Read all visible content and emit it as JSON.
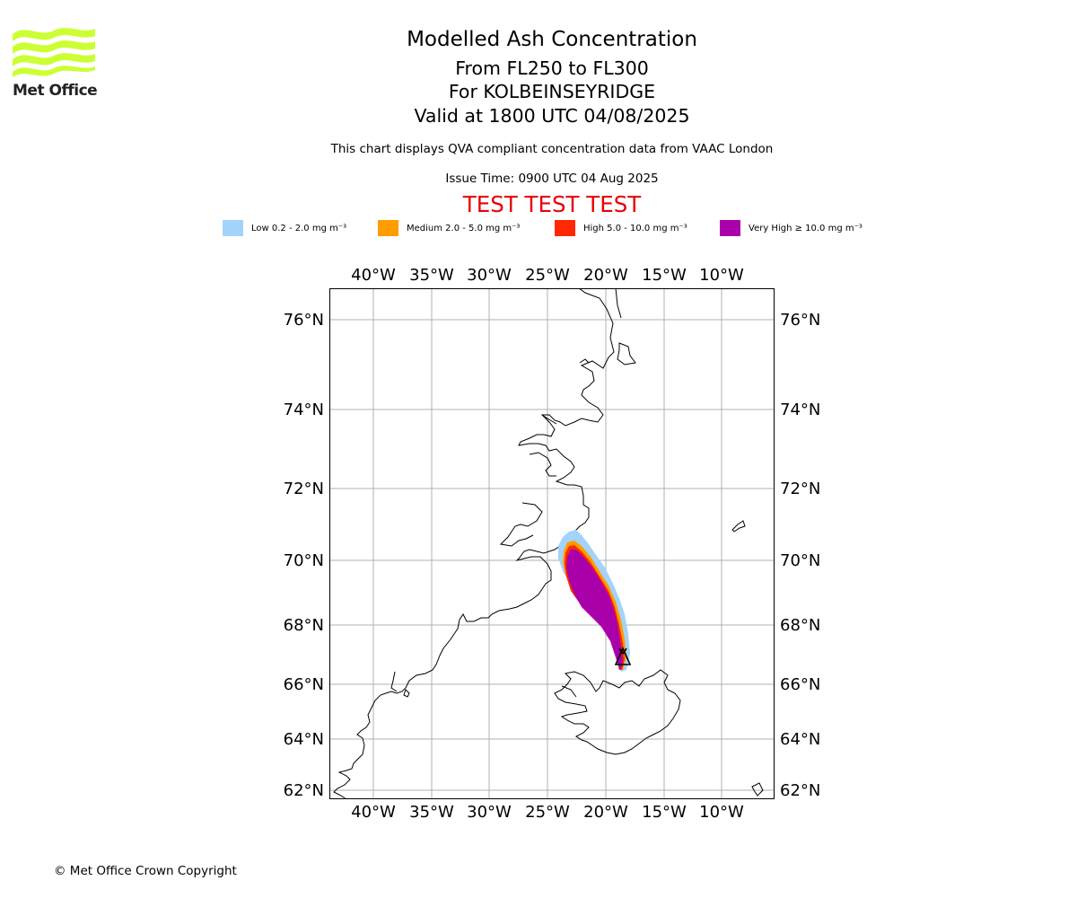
{
  "logo": {
    "text": "Met Office",
    "accent": "#ccff33"
  },
  "header": {
    "title": "Modelled Ash Concentration",
    "levels": "From FL250 to FL300",
    "location": "For KOLBEINSEYRIDGE",
    "valid": "Valid at 1800 UTC 04/08/2025",
    "description": "This chart displays QVA compliant concentration data from VAAC London",
    "issue_time": "Issue Time: 0900 UTC 04 Aug 2025",
    "test_banner": "TEST TEST TEST"
  },
  "legend": [
    {
      "label": "Low 0.2 - 2.0 mg m⁻³",
      "color": "#a3d3fa"
    },
    {
      "label": "Medium 2.0 - 5.0 mg m⁻³",
      "color": "#ff9c00"
    },
    {
      "label": "High 5.0 - 10.0 mg m⁻³",
      "color": "#ff2800"
    },
    {
      "label": "Very High ≥ 10.0 mg m⁻³",
      "color": "#aa00aa"
    }
  ],
  "map": {
    "lon_ticks": [
      "40°W",
      "35°W",
      "30°W",
      "25°W",
      "20°W",
      "15°W",
      "10°W"
    ],
    "lat_ticks": [
      "76°N",
      "74°N",
      "72°N",
      "70°N",
      "68°N",
      "66°N",
      "64°N",
      "62°N"
    ],
    "volcano_marker": "volcano-symbol"
  },
  "footer": {
    "copyright": "© Met Office Crown Copyright"
  }
}
